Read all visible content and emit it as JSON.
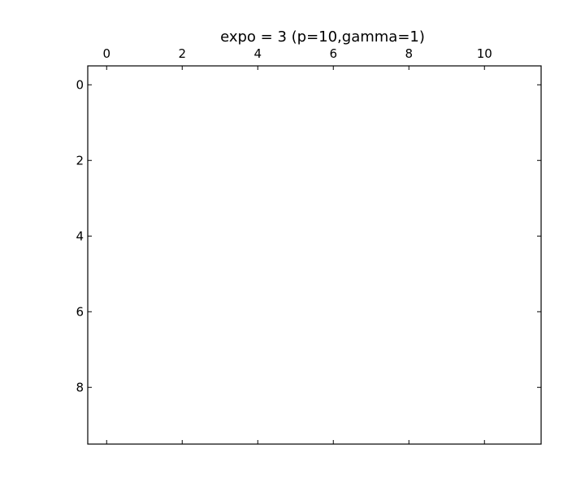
{
  "chart_data": {
    "type": "heatmap",
    "title": "expo = 3 (p=10,gamma=1)",
    "xlabel": "",
    "ylabel": "",
    "x_axis_position": "top",
    "xlim": [
      -0.5,
      11.5
    ],
    "ylim": [
      9.5,
      -0.5
    ],
    "y_inverted": true,
    "x_ticks": [
      0,
      2,
      4,
      6,
      8,
      10
    ],
    "y_ticks": [
      0,
      2,
      4,
      6,
      8
    ],
    "values": [],
    "grid": false,
    "colors": {
      "frame": "#000000",
      "background": "#ffffff"
    }
  }
}
